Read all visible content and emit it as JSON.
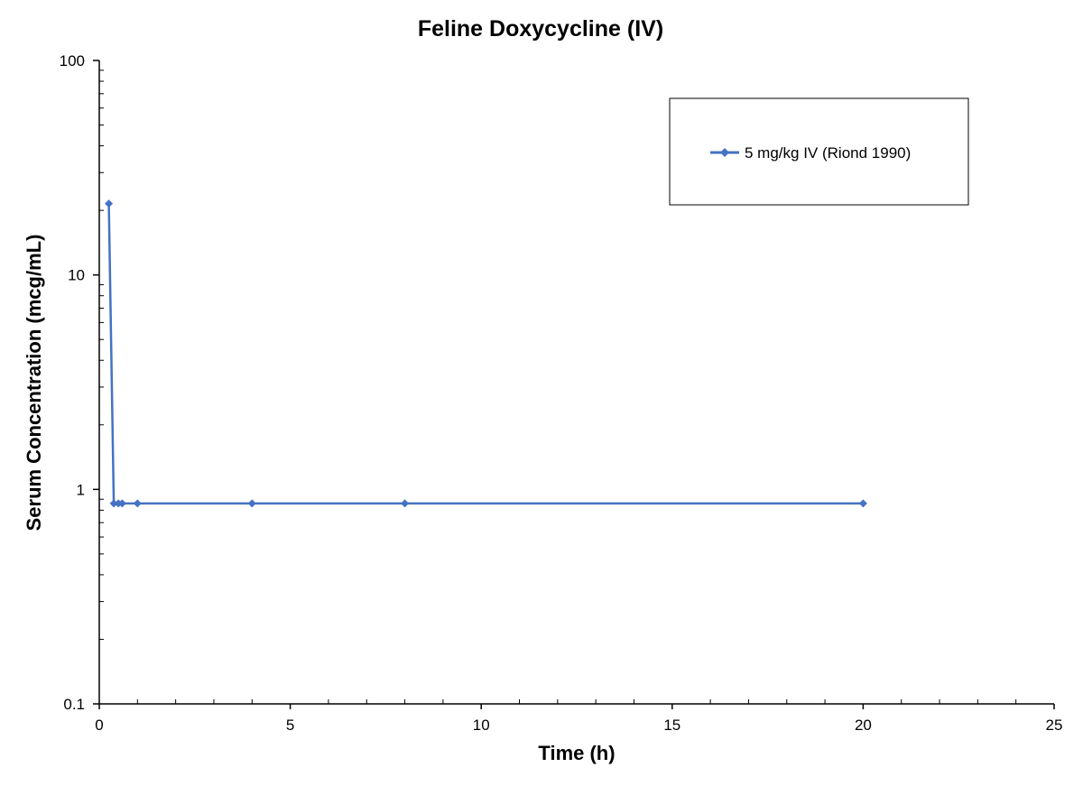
{
  "chart_data": {
    "type": "line",
    "title": "Feline Doxycycline (IV)",
    "xlabel": "Time (h)",
    "ylabel": "Serum Concentration (mcg/mL)",
    "xlim": [
      0,
      25
    ],
    "ylim": [
      0.1,
      100
    ],
    "yscale": "log",
    "xticks": [
      "0",
      "5",
      "10",
      "15",
      "20",
      "25"
    ],
    "yticks": [
      "0.1",
      "1",
      "10",
      "100"
    ],
    "grid": false,
    "legend_position": "top-right",
    "series": [
      {
        "name": "5 mg/kg IV (Riond 1990)",
        "color": "#4472C4",
        "marker": "diamond",
        "x": [
          0.25,
          0.38,
          0.5,
          0.6,
          1.0,
          4.0,
          8.0,
          20.0
        ],
        "y": [
          21.5,
          0.86,
          0.86,
          0.86,
          0.86,
          0.86,
          0.86,
          0.86
        ]
      }
    ]
  }
}
